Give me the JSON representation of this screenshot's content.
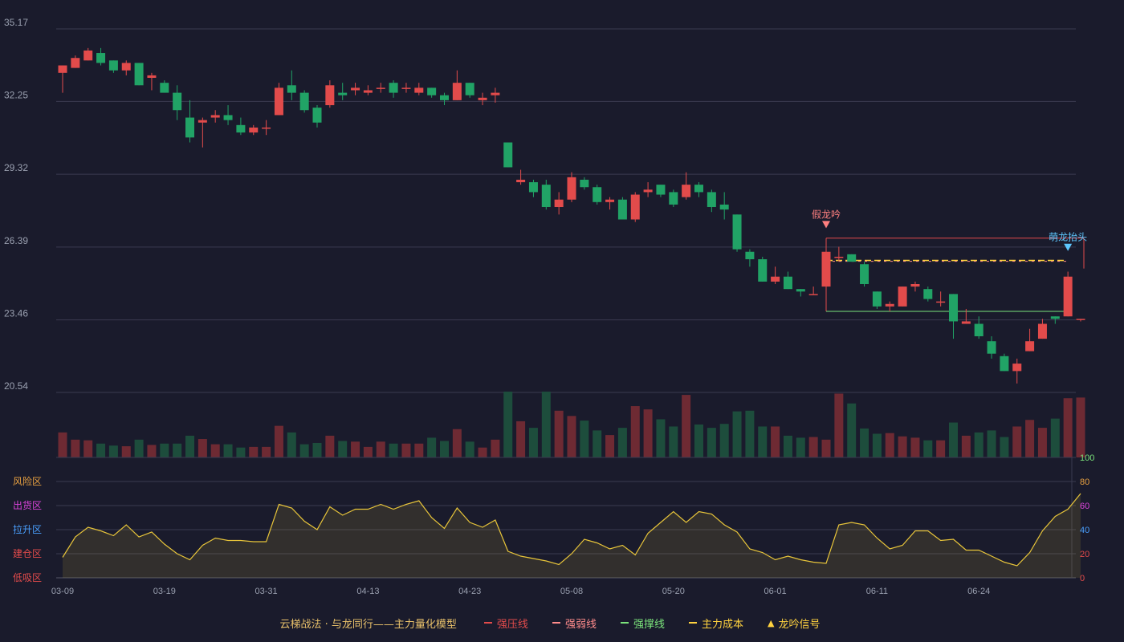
{
  "chart_data": {
    "type": "candlestick",
    "price_axis": {
      "ticks": [
        "35.17",
        "32.25",
        "29.32",
        "26.39",
        "23.46",
        "20.54"
      ],
      "range": [
        20.54,
        35.17
      ]
    },
    "dates": [
      "03-09",
      "03-19",
      "03-31",
      "04-13",
      "04-23",
      "05-08",
      "05-20",
      "06-01",
      "06-11",
      "06-24"
    ],
    "candles": [
      [
        33.4,
        33.7,
        32.6,
        33.7
      ],
      [
        33.6,
        34.0,
        33.6,
        34.1
      ],
      [
        33.9,
        34.3,
        33.9,
        34.4
      ],
      [
        34.2,
        33.8,
        33.7,
        34.4
      ],
      [
        33.9,
        33.5,
        33.4,
        33.9
      ],
      [
        33.5,
        33.8,
        33.3,
        33.9
      ],
      [
        33.8,
        32.9,
        32.9,
        33.8
      ],
      [
        33.2,
        33.3,
        32.7,
        33.4
      ],
      [
        33.0,
        32.6,
        32.6,
        33.1
      ],
      [
        32.6,
        31.9,
        31.5,
        32.9
      ],
      [
        31.6,
        30.8,
        30.6,
        32.3
      ],
      [
        31.4,
        31.5,
        30.4,
        31.6
      ],
      [
        31.6,
        31.7,
        31.4,
        31.9
      ],
      [
        31.7,
        31.5,
        31.3,
        32.1
      ],
      [
        31.3,
        31.0,
        30.9,
        31.6
      ],
      [
        31.0,
        31.2,
        30.9,
        31.3
      ],
      [
        31.2,
        31.2,
        30.9,
        31.5
      ],
      [
        31.7,
        32.8,
        31.7,
        33.0
      ],
      [
        32.9,
        32.6,
        32.3,
        33.5
      ],
      [
        32.6,
        31.9,
        31.8,
        32.7
      ],
      [
        32.0,
        31.4,
        31.2,
        32.1
      ],
      [
        32.1,
        32.9,
        32.0,
        33.1
      ],
      [
        32.6,
        32.5,
        32.3,
        33.0
      ],
      [
        32.7,
        32.8,
        32.5,
        33.0
      ],
      [
        32.6,
        32.7,
        32.5,
        32.9
      ],
      [
        32.8,
        32.8,
        32.6,
        33.0
      ],
      [
        33.0,
        32.6,
        32.4,
        33.1
      ],
      [
        32.8,
        32.8,
        32.6,
        33.0
      ],
      [
        32.6,
        32.8,
        32.5,
        33.0
      ],
      [
        32.8,
        32.5,
        32.4,
        32.8
      ],
      [
        32.5,
        32.3,
        32.1,
        32.6
      ],
      [
        32.3,
        33.0,
        32.3,
        33.5
      ],
      [
        33.0,
        32.5,
        32.4,
        33.0
      ],
      [
        32.3,
        32.4,
        32.1,
        32.6
      ],
      [
        32.5,
        32.6,
        32.2,
        32.8
      ],
      [
        30.6,
        29.6,
        29.6,
        30.6
      ],
      [
        29.0,
        29.1,
        28.9,
        29.5
      ],
      [
        29.0,
        28.6,
        28.4,
        29.1
      ],
      [
        28.9,
        28.0,
        27.9,
        29.1
      ],
      [
        28.0,
        28.3,
        27.7,
        28.6
      ],
      [
        28.3,
        29.2,
        28.2,
        29.4
      ],
      [
        29.1,
        28.8,
        28.7,
        29.2
      ],
      [
        28.8,
        28.2,
        28.1,
        28.9
      ],
      [
        28.2,
        28.3,
        27.9,
        28.4
      ],
      [
        28.3,
        27.5,
        27.5,
        28.4
      ],
      [
        27.5,
        28.5,
        27.4,
        28.6
      ],
      [
        28.6,
        28.7,
        28.4,
        29.0
      ],
      [
        28.9,
        28.5,
        28.4,
        28.9
      ],
      [
        28.6,
        28.1,
        28.0,
        28.7
      ],
      [
        28.4,
        28.9,
        28.3,
        29.4
      ],
      [
        28.9,
        28.6,
        28.4,
        29.0
      ],
      [
        28.6,
        28.0,
        27.8,
        28.7
      ],
      [
        28.1,
        27.9,
        27.5,
        28.6
      ],
      [
        27.7,
        26.3,
        26.2,
        27.7
      ],
      [
        26.2,
        25.9,
        25.6,
        26.3
      ],
      [
        25.9,
        25.0,
        25.0,
        26.0
      ],
      [
        25.0,
        25.2,
        24.9,
        25.6
      ],
      [
        25.2,
        24.7,
        24.7,
        25.4
      ],
      [
        24.7,
        24.6,
        24.4,
        24.7
      ],
      [
        24.5,
        24.5,
        24.5,
        24.8
      ],
      [
        24.8,
        26.2,
        24.8,
        26.6
      ],
      [
        26.0,
        26.0,
        25.8,
        26.4
      ],
      [
        26.1,
        25.8,
        25.8,
        26.1
      ],
      [
        25.7,
        24.9,
        24.8,
        25.8
      ],
      [
        24.6,
        24.0,
        23.9,
        24.6
      ],
      [
        24.0,
        24.1,
        23.8,
        24.2
      ],
      [
        24.0,
        24.8,
        24.0,
        24.8
      ],
      [
        24.8,
        24.9,
        24.6,
        25.0
      ],
      [
        24.7,
        24.3,
        24.2,
        24.8
      ],
      [
        24.2,
        24.2,
        24.0,
        24.6
      ],
      [
        24.5,
        23.4,
        22.7,
        24.5
      ],
      [
        23.3,
        23.4,
        23.3,
        23.9
      ],
      [
        23.3,
        22.8,
        22.7,
        23.6
      ],
      [
        22.6,
        22.1,
        21.9,
        22.8
      ],
      [
        22.0,
        21.4,
        21.4,
        22.1
      ],
      [
        21.4,
        21.7,
        20.9,
        21.9
      ],
      [
        22.2,
        22.6,
        22.2,
        23.1
      ],
      [
        22.7,
        23.3,
        22.7,
        23.5
      ],
      [
        23.6,
        23.5,
        23.3,
        23.6
      ],
      [
        23.6,
        25.2,
        23.6,
        25.4
      ],
      [
        23.5,
        23.5,
        23.4,
        23.5
      ]
    ],
    "volume_pct": [
      38,
      27,
      26,
      21,
      18,
      17,
      27,
      19,
      21,
      21,
      33,
      28,
      20,
      20,
      15,
      16,
      16,
      48,
      38,
      20,
      22,
      33,
      25,
      24,
      16,
      24,
      21,
      21,
      21,
      30,
      25,
      43,
      24,
      15,
      27,
      100,
      55,
      45,
      100,
      71,
      63,
      56,
      41,
      34,
      45,
      78,
      73,
      58,
      47,
      95,
      50,
      45,
      51,
      70,
      71,
      47,
      47,
      33,
      30,
      31,
      27,
      97,
      82,
      44,
      36,
      37,
      32,
      30,
      26,
      26,
      53,
      33,
      38,
      41,
      31,
      47,
      57,
      45,
      59,
      90,
      91
    ],
    "indicator": {
      "values": [
        17,
        34,
        42,
        39,
        35,
        44,
        34,
        38,
        28,
        20,
        15,
        27,
        33,
        31,
        31,
        30,
        30,
        61,
        58,
        47,
        40,
        59,
        52,
        57,
        57,
        61,
        57,
        61,
        64,
        50,
        41,
        58,
        46,
        42,
        48,
        22,
        18,
        16,
        14,
        11,
        20,
        32,
        29,
        24,
        27,
        19,
        37,
        46,
        55,
        46,
        55,
        53,
        44,
        38,
        24,
        21,
        15,
        18,
        15,
        13,
        12,
        44,
        46,
        44,
        33,
        24,
        27,
        39,
        39,
        31,
        32,
        23,
        23,
        18,
        13,
        10,
        21,
        39,
        51,
        57,
        70
      ],
      "axis_ticks": [
        "100",
        "80",
        "60",
        "40",
        "20",
        "0"
      ],
      "zone_labels": [
        "风险区",
        "出货区",
        "拉升区",
        "建仓区",
        "低吸区"
      ],
      "zone_colors": [
        "#e8a040",
        "#dd44dd",
        "#4aa0ff",
        "#e24b4b",
        "#e24b4b"
      ]
    },
    "signals": [
      {
        "label": "假龙吟",
        "color": "#ff8080"
      },
      {
        "label": "萌龙抬头",
        "color": "#5ec8ff"
      }
    ],
    "lines": {
      "strong_pressure": 26.75,
      "weak_pressure": 25.85,
      "main_cost": 25.85,
      "support": 23.8
    }
  },
  "legend": {
    "title": "云梯战法 · 与龙同行——主力量化模型",
    "items": [
      {
        "label": "强压线",
        "color": "#e24b4b",
        "style": "solid"
      },
      {
        "label": "强弱线",
        "color": "#ff8c8c",
        "style": "dashed"
      },
      {
        "label": "强撑线",
        "color": "#7be37b",
        "style": "solid"
      },
      {
        "label": "主力成本",
        "color": "#ffd23f",
        "style": "dashed"
      },
      {
        "label": "龙吟信号",
        "color": "#ffd23f",
        "style": "triangle"
      }
    ]
  },
  "colors": {
    "up": "#e24b4b",
    "down": "#21a366",
    "indicator": "#e8c53a",
    "background": "#1a1b2c"
  }
}
